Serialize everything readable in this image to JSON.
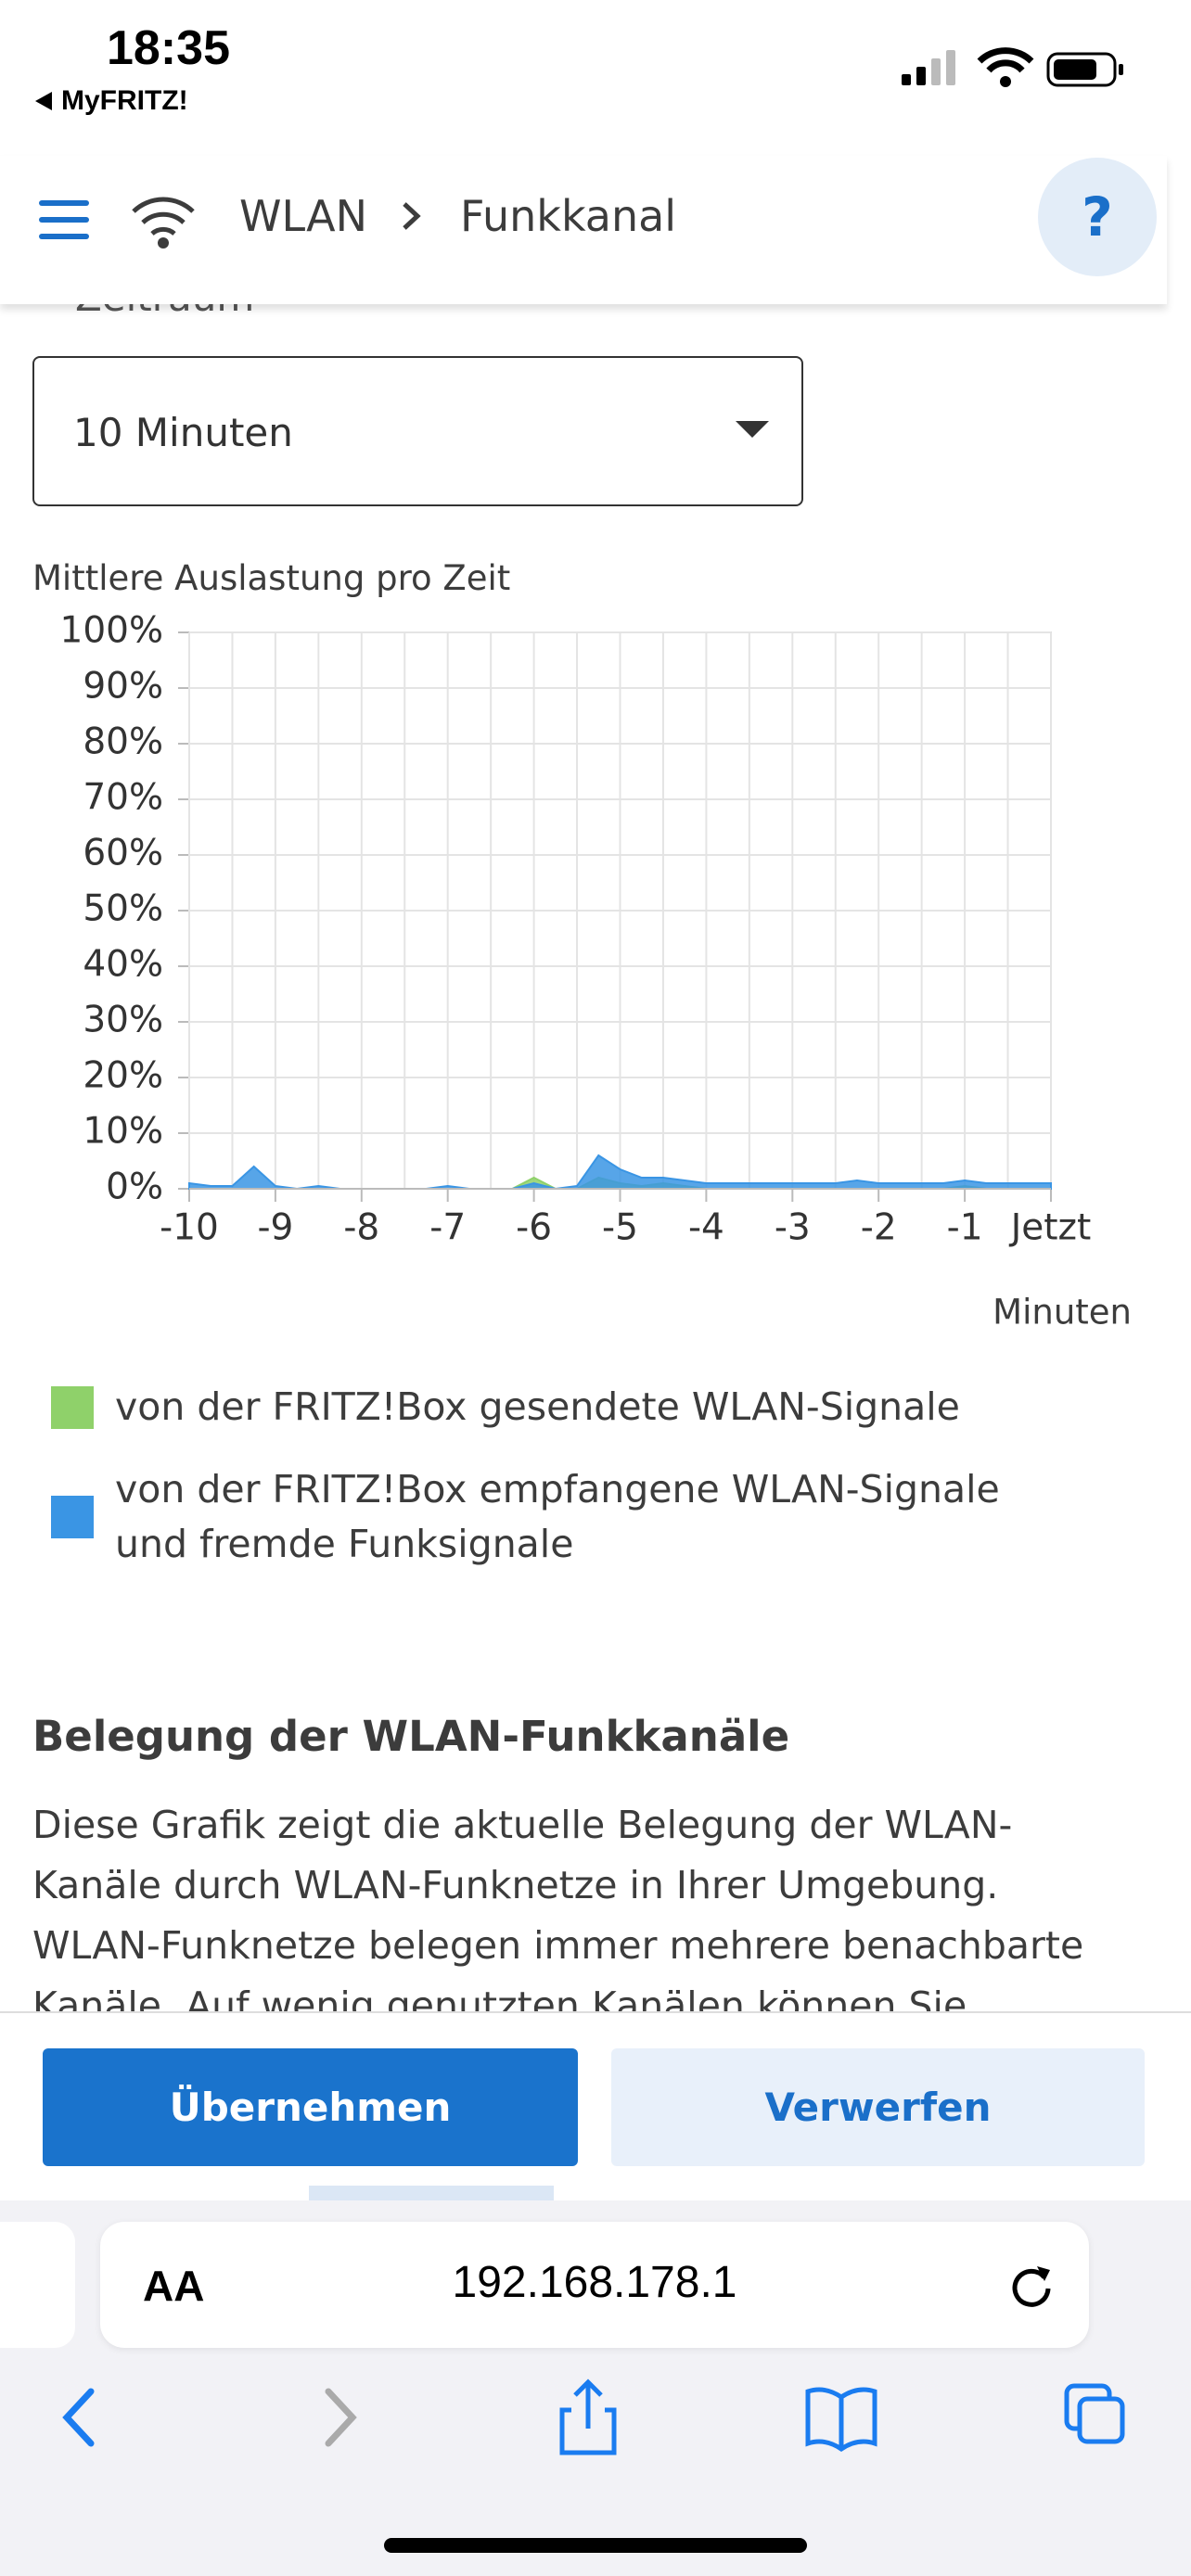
{
  "status_bar": {
    "time": "18:35",
    "back_label": "MyFRITZ!"
  },
  "header": {
    "crumbs": [
      "WLAN",
      "Funkkanal"
    ],
    "help": "?"
  },
  "period": {
    "label": "Zeitraum",
    "selected": "10 Minuten"
  },
  "chart_data": {
    "type": "area",
    "title": "Mittlere Auslastung pro Zeit",
    "xlabel": "Minuten",
    "x": [
      -10,
      -9.75,
      -9.5,
      -9.25,
      -9,
      -8.75,
      -8.5,
      -8.25,
      -8,
      -7.75,
      -7.5,
      -7.25,
      -7,
      -6.75,
      -6.5,
      -6.25,
      -6,
      -5.75,
      -5.5,
      -5.25,
      -5,
      -4.75,
      -4.5,
      -4.25,
      -4,
      -3.75,
      -3.5,
      -3.25,
      -3,
      -2.75,
      -2.5,
      -2.25,
      -2,
      -1.75,
      -1.5,
      -1.25,
      -1,
      -0.75,
      -0.5,
      -0.25,
      0
    ],
    "series": [
      {
        "name": "von der FRITZ!Box gesendete WLAN-Signale",
        "color": "#8fd16a",
        "values": [
          0,
          0,
          0,
          0,
          0,
          0,
          0,
          0,
          0,
          0,
          0,
          0,
          0,
          0,
          0,
          0,
          2,
          0,
          0,
          2,
          1,
          0.5,
          1,
          0.5,
          0,
          0,
          0,
          0,
          0,
          0,
          0,
          0,
          0,
          0,
          0,
          0,
          0.5,
          0,
          0,
          0,
          0
        ]
      },
      {
        "name": "von der FRITZ!Box empfangene WLAN-Signale und fremde Funksignale",
        "color": "#3a95e4",
        "values": [
          1,
          0.5,
          0.5,
          4,
          0.5,
          0,
          0.5,
          0,
          0,
          0,
          0,
          0,
          0.5,
          0,
          0,
          0,
          1,
          0,
          0.5,
          6,
          3.5,
          2,
          2,
          1.5,
          1,
          1,
          1,
          1,
          1,
          1,
          1,
          1.5,
          1,
          1,
          1,
          1,
          1.5,
          1,
          1,
          1,
          1
        ]
      }
    ],
    "xlim": [
      -10,
      0
    ],
    "xticks": [
      -10,
      -9,
      -8,
      -7,
      -6,
      -5,
      -4,
      -3,
      -2,
      -1,
      {
        "value": 0,
        "label": "Jetzt"
      }
    ],
    "xminorticks": [
      -9.5,
      -8.5,
      -7.5,
      -6.5,
      -5.5,
      -4.5,
      -3.5,
      -2.5,
      -1.5,
      -0.5
    ],
    "ylim": [
      0,
      100
    ],
    "yticks": [
      {
        "value": 0,
        "label": "0%"
      },
      {
        "value": 10,
        "label": "10%"
      },
      {
        "value": 20,
        "label": "20%"
      },
      {
        "value": 30,
        "label": "30%"
      },
      {
        "value": 40,
        "label": "40%"
      },
      {
        "value": 50,
        "label": "50%"
      },
      {
        "value": 60,
        "label": "60%"
      },
      {
        "value": 70,
        "label": "70%"
      },
      {
        "value": 80,
        "label": "80%"
      },
      {
        "value": 90,
        "label": "90%"
      },
      {
        "value": 100,
        "label": "100%"
      }
    ],
    "grid": true
  },
  "section": {
    "heading": "Belegung der WLAN-Funkkanäle",
    "text": "Diese Grafik zeigt die aktuelle Belegung der WLAN-Kanäle durch WLAN-Funknetze in Ihrer Umgebung. WLAN-Funknetze belegen immer mehrere benachbarte Kanäle. Auf wenig genutzten Kanälen können Sie bessere"
  },
  "buttons": {
    "apply": "Übernehmen",
    "discard": "Verwerfen"
  },
  "browser": {
    "text_size": "AA",
    "url": "192.168.178.1"
  }
}
